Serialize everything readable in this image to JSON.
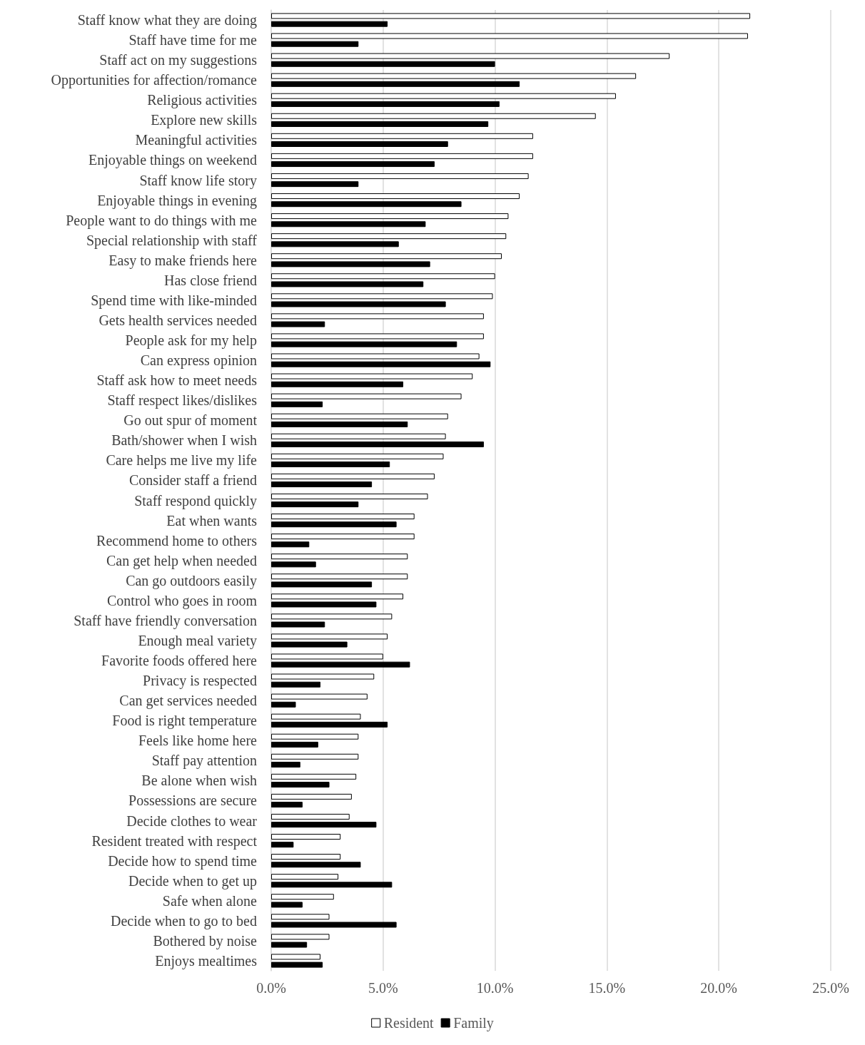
{
  "chart_data": {
    "type": "bar",
    "orientation": "horizontal",
    "categories": [
      "Staff know what they are doing",
      "Staff have time for me",
      "Staff act on my suggestions",
      "Opportunities for affection/romance",
      "Religious activities",
      "Explore new skills",
      "Meaningful activities",
      "Enjoyable things on weekend",
      "Staff know life story",
      "Enjoyable things in evening",
      "People want to do things with me",
      "Special relationship with staff",
      "Easy to make friends here",
      "Has close friend",
      "Spend time with like-minded",
      "Gets health services needed",
      "People ask for my help",
      "Can express opinion",
      "Staff ask how to meet needs",
      "Staff respect likes/dislikes",
      "Go out spur of moment",
      "Bath/shower when I wish",
      "Care helps me live my life",
      "Consider staff a friend",
      "Staff respond quickly",
      "Eat when wants",
      "Recommend home to others",
      "Can get help when needed",
      "Can go outdoors easily",
      "Control who goes in room",
      "Staff have friendly conversation",
      "Enough meal variety",
      "Favorite foods offered here",
      "Privacy is respected",
      "Can get services needed",
      "Food is right temperature",
      "Feels like home here",
      "Staff pay attention",
      "Be alone when wish",
      "Possessions are secure",
      "Decide clothes to wear",
      "Resident treated with respect",
      "Decide how to spend time",
      "Decide when to get up",
      "Safe when alone",
      "Decide when to go to bed",
      "Bothered by noise",
      "Enjoys mealtimes"
    ],
    "series": [
      {
        "name": "Resident",
        "color": "#ffffff",
        "values": [
          21.4,
          21.3,
          17.8,
          16.3,
          15.4,
          14.5,
          11.7,
          11.7,
          11.5,
          11.1,
          10.6,
          10.5,
          10.3,
          10.0,
          9.9,
          9.5,
          9.5,
          9.3,
          9.0,
          8.5,
          7.9,
          7.8,
          7.7,
          7.3,
          7.0,
          6.4,
          6.4,
          6.1,
          6.1,
          5.9,
          5.4,
          5.2,
          5.0,
          4.6,
          4.3,
          4.0,
          3.9,
          3.9,
          3.8,
          3.6,
          3.5,
          3.1,
          3.1,
          3.0,
          2.8,
          2.6,
          2.6,
          2.2
        ]
      },
      {
        "name": "Family",
        "color": "#000000",
        "values": [
          5.2,
          3.9,
          10.0,
          11.1,
          10.2,
          9.7,
          7.9,
          7.3,
          3.9,
          8.5,
          6.9,
          5.7,
          7.1,
          6.8,
          7.8,
          2.4,
          8.3,
          9.8,
          5.9,
          2.3,
          6.1,
          9.5,
          5.3,
          4.5,
          3.9,
          5.6,
          1.7,
          2.0,
          4.5,
          4.7,
          2.4,
          3.4,
          6.2,
          2.2,
          1.1,
          5.2,
          2.1,
          1.3,
          2.6,
          1.4,
          4.7,
          1.0,
          4.0,
          5.4,
          1.4,
          5.6,
          1.6,
          2.3
        ]
      }
    ],
    "xlim": [
      0,
      25
    ],
    "xticks": [
      {
        "value": 0,
        "label": "0.0%"
      },
      {
        "value": 5,
        "label": "5.0%"
      },
      {
        "value": 10,
        "label": "10.0%"
      },
      {
        "value": 15,
        "label": "15.0%"
      },
      {
        "value": 20,
        "label": "20.0%"
      },
      {
        "value": 25,
        "label": "25.0%"
      }
    ],
    "grid": "x",
    "legend": "bottom"
  }
}
